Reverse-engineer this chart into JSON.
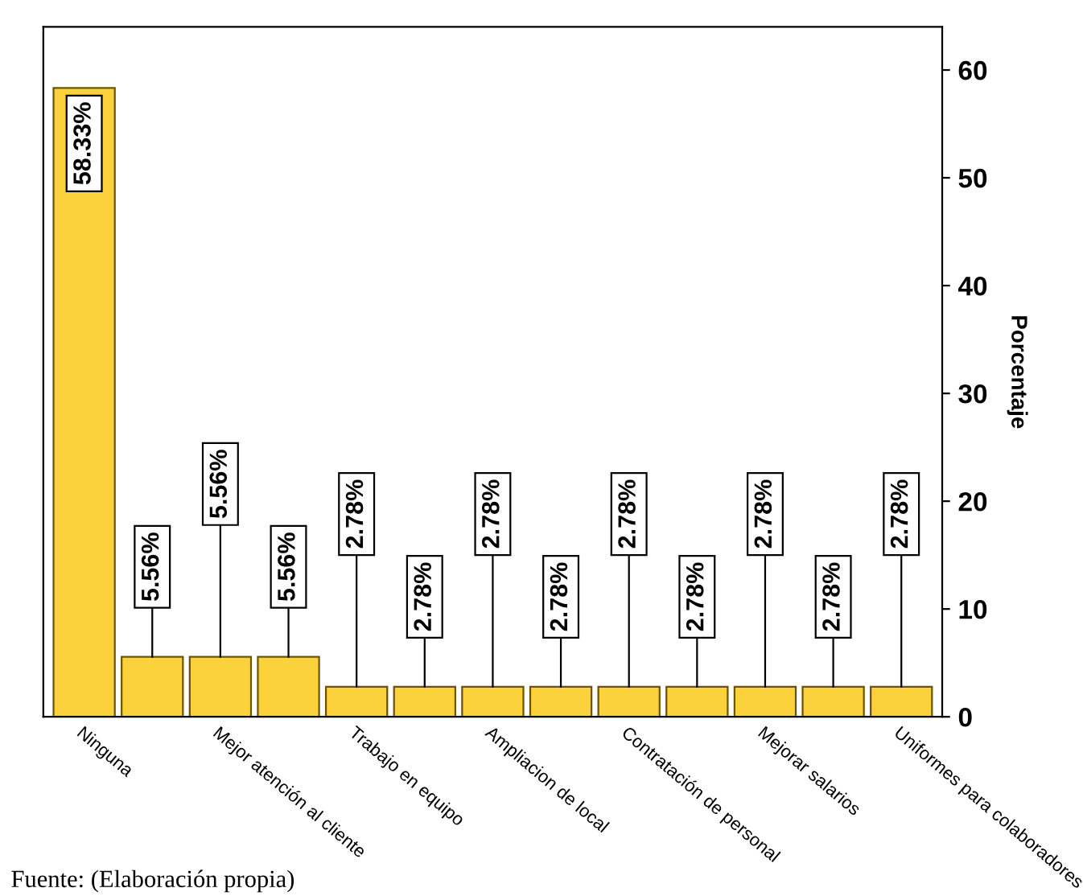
{
  "chart_data": {
    "type": "bar",
    "categories": [
      "Ninguna",
      null,
      "Mejor atención al cliente",
      null,
      "Trabajo en equipo",
      null,
      "Ampliacion de local",
      null,
      "Contratación de personal",
      null,
      "Mejorar salarios",
      null,
      "Uniformes para colaboradores"
    ],
    "values": [
      58.33,
      5.56,
      5.56,
      5.56,
      2.78,
      2.78,
      2.78,
      2.78,
      2.78,
      2.78,
      2.78,
      2.78,
      2.78
    ],
    "value_labels": [
      "58.33%",
      "5.56%",
      "5.56%",
      "5.56%",
      "2.78%",
      "2.78%",
      "2.78%",
      "2.78%",
      "2.78%",
      "2.78%",
      "2.78%",
      "2.78%",
      "2.78%"
    ],
    "color": "#fcd23c",
    "ylabel": "Porcentaje",
    "ylim": [
      0,
      64
    ],
    "yticks": [
      0,
      10,
      20,
      30,
      40,
      50,
      60
    ],
    "annotations": [
      "Fuente: (Elaboración propia)"
    ]
  }
}
